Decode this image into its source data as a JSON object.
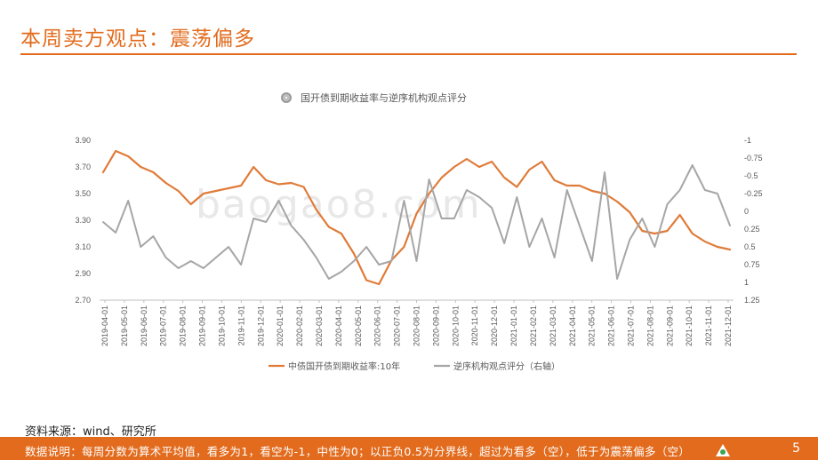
{
  "header": {
    "title": "本周卖方观点：震荡偏多"
  },
  "watermark": "baogao8.com",
  "source_text": "资料来源：wind、研究所",
  "footer": {
    "note": "数据说明：每周分数为算术平均值，看多为1，看空为-1，中性为0；以正负0.5为分界线，超过为看多（空），低于为震荡偏多（空）",
    "page": "5"
  },
  "colors": {
    "accent": "#e26b1d",
    "series_yield": "#e07b39",
    "series_score": "#a6a6a6"
  },
  "chart_data": {
    "type": "line",
    "title": "国开债到期收益率与逆序机构观点评分",
    "x_labels": [
      "2019-04-01",
      "2019-05-01",
      "2019-06-01",
      "2019-07-01",
      "2019-08-01",
      "2019-09-01",
      "2019-10-01",
      "2019-11-01",
      "2019-12-01",
      "2020-01-01",
      "2020-02-01",
      "2020-03-01",
      "2020-04-01",
      "2020-05-01",
      "2020-06-01",
      "2020-07-01",
      "2020-08-01",
      "2020-09-01",
      "2020-10-01",
      "2020-11-01",
      "2020-12-01",
      "2021-01-01",
      "2021-02-01",
      "2021-03-01",
      "2021-04-01",
      "2021-05-01",
      "2021-06-01",
      "2021-07-01",
      "2021-08-01",
      "2021-09-01",
      "2021-10-01",
      "2021-11-01",
      "2021-12-01"
    ],
    "y_left": {
      "min": 2.7,
      "max": 3.9,
      "ticks": [
        "3.90",
        "3.70",
        "3.50",
        "3.30",
        "3.10",
        "2.90",
        "2.70"
      ]
    },
    "y_right": {
      "min": -1,
      "max": 1.25,
      "reversed": true,
      "ticks": [
        "-1",
        "-0.75",
        "-0.5",
        "-0.25",
        "0",
        "0.25",
        "0.5",
        "0.75",
        "1",
        "1.25"
      ]
    },
    "series": [
      {
        "name": "中债国开债到期收益率:10年",
        "axis": "left",
        "values": [
          3.66,
          3.82,
          3.78,
          3.7,
          3.66,
          3.58,
          3.52,
          3.42,
          3.5,
          3.52,
          3.54,
          3.56,
          3.7,
          3.6,
          3.57,
          3.58,
          3.55,
          3.38,
          3.25,
          3.2,
          3.05,
          2.85,
          2.82,
          3.0,
          3.1,
          3.35,
          3.5,
          3.62,
          3.7,
          3.76,
          3.7,
          3.74,
          3.62,
          3.55,
          3.68,
          3.74,
          3.6,
          3.56,
          3.56,
          3.52,
          3.5,
          3.44,
          3.36,
          3.22,
          3.2,
          3.22,
          3.34,
          3.2,
          3.14,
          3.1,
          3.08
        ]
      },
      {
        "name": "逆序机构观点评分（右轴）",
        "axis": "right",
        "values": [
          0.15,
          0.3,
          -0.15,
          0.5,
          0.35,
          0.65,
          0.8,
          0.7,
          0.8,
          0.65,
          0.5,
          0.75,
          0.1,
          0.15,
          -0.15,
          0.2,
          0.4,
          0.65,
          0.95,
          0.85,
          0.7,
          0.5,
          0.75,
          0.7,
          -0.15,
          0.7,
          -0.45,
          0.1,
          0.1,
          -0.3,
          -0.2,
          -0.05,
          0.45,
          -0.2,
          0.5,
          0.1,
          0.65,
          -0.3,
          0.2,
          0.7,
          -0.55,
          0.95,
          0.4,
          0.1,
          0.5,
          -0.1,
          -0.3,
          -0.65,
          -0.3,
          -0.25,
          0.2
        ]
      }
    ],
    "legend_position": "bottom",
    "grid": false
  }
}
